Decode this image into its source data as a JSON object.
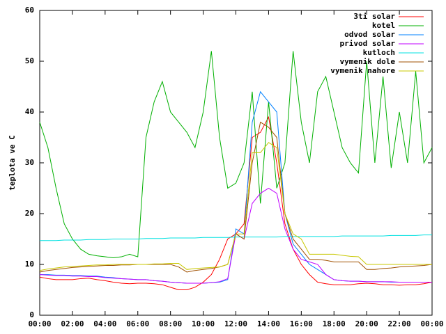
{
  "chart_data": {
    "type": "line",
    "ylabel": "teplota ve C",
    "x": [
      0,
      0.5,
      1,
      1.5,
      2,
      2.5,
      3,
      3.5,
      4,
      4.5,
      5,
      5.5,
      6,
      6.5,
      7,
      7.5,
      8,
      8.5,
      9,
      9.5,
      10,
      10.5,
      11,
      11.5,
      12,
      12.5,
      13,
      13.5,
      14,
      14.5,
      15,
      15.5,
      16,
      16.5,
      17,
      17.5,
      18,
      18.5,
      19,
      19.5,
      20,
      20.5,
      21,
      21.5,
      22,
      22.5,
      23,
      23.5,
      24
    ],
    "xlim": [
      0,
      24
    ],
    "xticks": [
      {
        "value": 0,
        "label": "00:00"
      },
      {
        "value": 2,
        "label": "02:00"
      },
      {
        "value": 4,
        "label": "04:00"
      },
      {
        "value": 6,
        "label": "06:00"
      },
      {
        "value": 8,
        "label": "08:00"
      },
      {
        "value": 10,
        "label": "10:00"
      },
      {
        "value": 12,
        "label": "12:00"
      },
      {
        "value": 14,
        "label": "14:00"
      },
      {
        "value": 16,
        "label": "16:00"
      },
      {
        "value": 18,
        "label": "18:00"
      },
      {
        "value": 20,
        "label": "20:00"
      },
      {
        "value": 22,
        "label": "22:00"
      },
      {
        "value": 24,
        "label": "00:00"
      }
    ],
    "ylim": [
      0,
      60
    ],
    "yticks": [
      0,
      10,
      20,
      30,
      40,
      50,
      60
    ],
    "legend": "top-right",
    "series": [
      {
        "name": "3ti solar",
        "color": "#ff0000",
        "values": [
          7.5,
          7.2,
          7,
          7,
          7,
          7.2,
          7.3,
          7,
          6.8,
          6.5,
          6.3,
          6.2,
          6.3,
          6.3,
          6.2,
          6,
          5.5,
          5,
          5,
          5.5,
          6.5,
          8,
          11,
          15,
          16,
          18,
          35,
          36,
          39,
          30,
          18,
          13,
          10,
          8,
          6.5,
          6.2,
          6,
          6,
          6,
          6.2,
          6.3,
          6.2,
          6,
          6,
          5.9,
          6,
          6,
          6.2,
          6.5
        ]
      },
      {
        "name": "kotel",
        "color": "#00b000",
        "values": [
          38,
          33,
          25,
          18,
          15,
          13,
          12,
          11.7,
          11.5,
          11.3,
          11.5,
          12,
          11.5,
          35,
          42,
          46,
          40,
          38,
          36,
          33,
          40,
          52,
          35,
          25,
          26,
          30,
          44,
          22,
          42,
          25,
          30,
          52,
          38,
          30,
          44,
          47,
          40,
          33,
          30,
          28,
          50,
          30,
          47,
          29,
          40,
          30,
          48,
          30,
          33
        ]
      },
      {
        "name": "odvod solar",
        "color": "#0080ff",
        "values": [
          8,
          8,
          7.9,
          7.9,
          7.8,
          7.8,
          7.7,
          7.7,
          7.5,
          7.4,
          7.2,
          7.1,
          7,
          7,
          6.8,
          6.7,
          6.5,
          6.4,
          6.3,
          6.3,
          6.3,
          6.4,
          6.5,
          7,
          17,
          16,
          38,
          44,
          42,
          40,
          20,
          14,
          12,
          10,
          9,
          8,
          7,
          6.8,
          6.7,
          6.7,
          6.6,
          6.6,
          6.6,
          6.5,
          6.5,
          6.5,
          6.5,
          6.5,
          6.5
        ]
      },
      {
        "name": "privod solar",
        "color": "#c000ff",
        "values": [
          8,
          7.9,
          7.8,
          7.8,
          7.7,
          7.7,
          7.6,
          7.6,
          7.4,
          7.3,
          7.2,
          7.1,
          7,
          7,
          6.8,
          6.7,
          6.5,
          6.4,
          6.3,
          6.3,
          6.3,
          6.4,
          6.6,
          7.2,
          16,
          15,
          22,
          24,
          25,
          24,
          17,
          13,
          11,
          10.5,
          10,
          8,
          7,
          6.8,
          6.7,
          6.7,
          6.6,
          6.6,
          6.6,
          6.6,
          6.5,
          6.5,
          6.5,
          6.5,
          6.5
        ]
      },
      {
        "name": "kutloch",
        "color": "#00e0e0",
        "values": [
          14.7,
          14.7,
          14.7,
          14.8,
          14.8,
          14.8,
          14.9,
          14.9,
          14.9,
          15,
          15,
          15,
          15,
          15.1,
          15.1,
          15.1,
          15.2,
          15.2,
          15.2,
          15.2,
          15.3,
          15.3,
          15.3,
          15.3,
          15.4,
          15.4,
          15.4,
          15.4,
          15.4,
          15.4,
          15.5,
          15.5,
          15.5,
          15.5,
          15.5,
          15.5,
          15.5,
          15.6,
          15.6,
          15.6,
          15.6,
          15.6,
          15.6,
          15.7,
          15.7,
          15.7,
          15.7,
          15.8,
          15.8
        ]
      },
      {
        "name": "vymenik dole",
        "color": "#a05000",
        "values": [
          8.5,
          8.8,
          9,
          9.2,
          9.4,
          9.5,
          9.6,
          9.7,
          9.8,
          9.8,
          9.9,
          9.9,
          10,
          10,
          10,
          10,
          10,
          9.5,
          8.5,
          8.8,
          9,
          9.2,
          9.5,
          10,
          16,
          15,
          30,
          38,
          37,
          35,
          20,
          15,
          13,
          11,
          11,
          10.8,
          10.5,
          10.5,
          10.5,
          10.5,
          9,
          9,
          9.2,
          9.3,
          9.5,
          9.6,
          9.7,
          9.8,
          10
        ]
      },
      {
        "name": "vymenik nahore",
        "color": "#c8c800",
        "values": [
          8.8,
          9.1,
          9.3,
          9.5,
          9.6,
          9.7,
          9.8,
          9.9,
          9.9,
          10,
          10,
          10,
          10,
          10,
          10.1,
          10.1,
          10.2,
          10.2,
          9,
          9.2,
          9.3,
          9.4,
          9.5,
          10,
          16,
          16,
          32,
          32,
          34,
          33,
          20,
          16,
          15,
          12,
          12,
          12,
          12,
          11.8,
          11.6,
          11.5,
          10,
          10,
          10,
          10,
          10,
          10,
          10,
          10,
          10
        ]
      }
    ]
  }
}
